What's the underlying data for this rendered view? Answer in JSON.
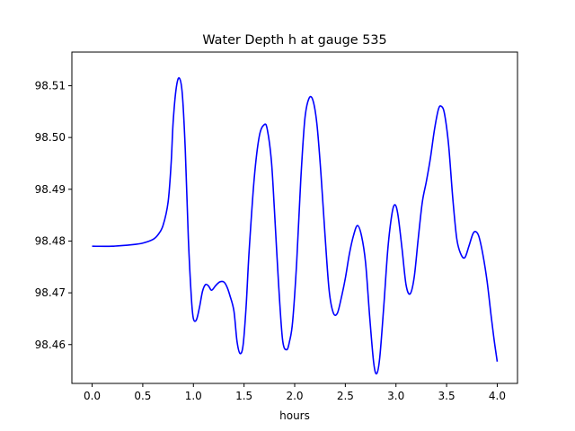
{
  "chart_data": {
    "type": "line",
    "title": "Water Depth h at gauge 535",
    "xlabel": "hours",
    "ylabel": "",
    "xlim": [
      -0.2,
      4.2
    ],
    "ylim": [
      98.4525,
      98.5165
    ],
    "xticks": [
      0.0,
      0.5,
      1.0,
      1.5,
      2.0,
      2.5,
      3.0,
      3.5,
      4.0
    ],
    "xtick_labels": [
      "0.0",
      "0.5",
      "1.0",
      "1.5",
      "2.0",
      "2.5",
      "3.0",
      "3.5",
      "4.0"
    ],
    "yticks": [
      98.46,
      98.47,
      98.48,
      98.49,
      98.5,
      98.51
    ],
    "ytick_labels": [
      "98.46",
      "98.47",
      "98.48",
      "98.49",
      "98.50",
      "98.51"
    ],
    "grid": false,
    "series": [
      {
        "color": "#0000ff",
        "x": [
          0.0,
          0.2,
          0.4,
          0.5,
          0.6,
          0.65,
          0.7,
          0.75,
          0.78,
          0.8,
          0.83,
          0.86,
          0.89,
          0.92,
          0.95,
          0.98,
          1.0,
          1.03,
          1.06,
          1.09,
          1.12,
          1.15,
          1.18,
          1.22,
          1.26,
          1.3,
          1.33,
          1.36,
          1.4,
          1.43,
          1.46,
          1.49,
          1.52,
          1.55,
          1.6,
          1.65,
          1.7,
          1.73,
          1.77,
          1.8,
          1.84,
          1.88,
          1.92,
          1.95,
          1.98,
          2.02,
          2.06,
          2.1,
          2.14,
          2.18,
          2.22,
          2.26,
          2.3,
          2.34,
          2.38,
          2.42,
          2.46,
          2.5,
          2.54,
          2.58,
          2.62,
          2.66,
          2.7,
          2.74,
          2.78,
          2.81,
          2.84,
          2.88,
          2.92,
          2.96,
          2.99,
          3.02,
          3.06,
          3.1,
          3.14,
          3.18,
          3.22,
          3.26,
          3.3,
          3.34,
          3.38,
          3.42,
          3.45,
          3.48,
          3.52,
          3.56,
          3.6,
          3.64,
          3.68,
          3.72,
          3.76,
          3.79,
          3.82,
          3.86,
          3.9,
          3.94,
          3.97,
          4.0
        ],
        "y": [
          98.479,
          98.479,
          98.4793,
          98.4796,
          98.4803,
          98.4812,
          98.483,
          98.4875,
          98.495,
          98.503,
          98.5095,
          98.5115,
          98.5085,
          98.4975,
          98.4805,
          98.469,
          98.465,
          98.4648,
          98.4672,
          98.4703,
          98.4716,
          98.4713,
          98.4705,
          98.4714,
          98.4721,
          98.4721,
          98.4712,
          98.4695,
          98.4665,
          98.4607,
          98.4583,
          98.4598,
          98.4672,
          98.478,
          98.492,
          98.5002,
          98.5025,
          98.5015,
          98.4955,
          98.486,
          98.472,
          98.461,
          98.459,
          98.4607,
          98.4645,
          98.476,
          98.4918,
          98.5035,
          98.5075,
          98.5072,
          98.5025,
          98.4928,
          98.481,
          98.4705,
          98.4662,
          98.466,
          98.469,
          98.4728,
          98.4775,
          98.481,
          98.483,
          98.481,
          98.4758,
          98.4655,
          98.4565,
          98.4544,
          98.4575,
          98.4675,
          98.4785,
          98.4852,
          98.487,
          98.485,
          98.4785,
          98.4715,
          98.4698,
          98.473,
          98.4805,
          98.4875,
          98.4915,
          98.496,
          98.5015,
          98.5055,
          98.506,
          98.5045,
          98.4985,
          98.4885,
          98.4805,
          98.4775,
          98.4768,
          98.479,
          98.4814,
          98.4818,
          98.4808,
          98.4772,
          98.4722,
          98.4655,
          98.4608,
          98.4567
        ]
      }
    ]
  }
}
